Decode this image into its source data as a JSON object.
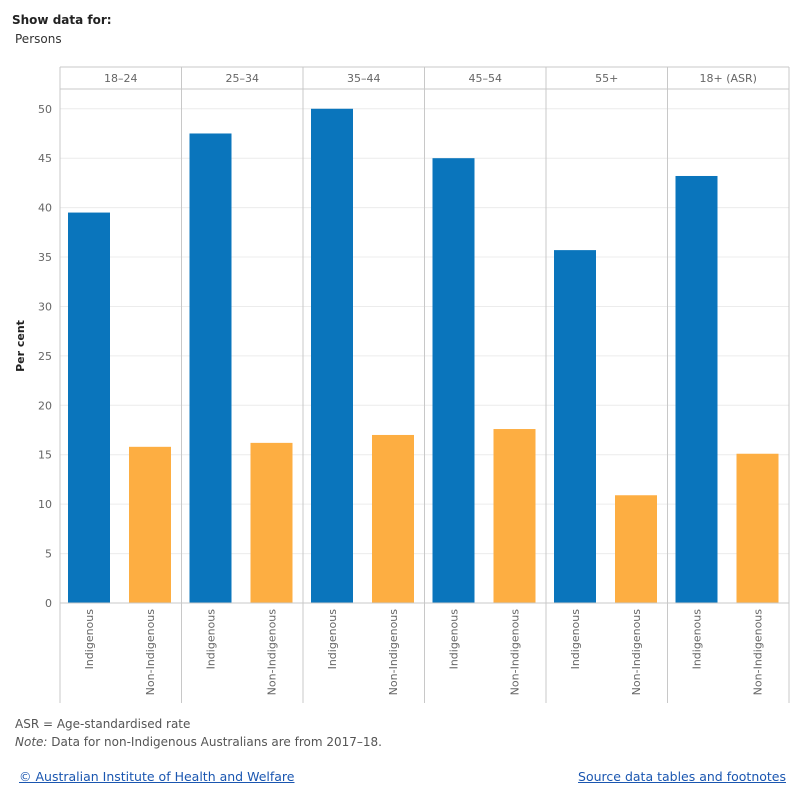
{
  "filter": {
    "label": "Show data for:",
    "value": "Persons"
  },
  "chart_data": {
    "type": "bar",
    "ylabel": "Per cent",
    "ylim": [
      0,
      52
    ],
    "yticks": [
      0,
      5,
      10,
      15,
      20,
      25,
      30,
      35,
      40,
      45,
      50
    ],
    "grid": true,
    "categories": [
      "Indigenous",
      "Non-Indigenous"
    ],
    "panels": [
      {
        "label": "18–24",
        "values": [
          39.5,
          15.8
        ]
      },
      {
        "label": "25–34",
        "values": [
          47.5,
          16.2
        ]
      },
      {
        "label": "35–44",
        "values": [
          50.0,
          17.0
        ]
      },
      {
        "label": "45–54",
        "values": [
          45.0,
          17.6
        ]
      },
      {
        "label": "55+",
        "values": [
          35.7,
          10.9
        ]
      },
      {
        "label": "18+ (ASR)",
        "values": [
          43.2,
          15.1
        ]
      }
    ],
    "colors": {
      "Indigenous": "#0a75bc",
      "Non-Indigenous": "#fdae42"
    }
  },
  "footer": {
    "asr_note": "ASR = Age-standardised rate",
    "note_prefix": "Note:",
    "note_text": " Data for non-Indigenous Australians are from 2017–18.",
    "copyright_link": "© Australian Institute of Health and Welfare",
    "source_link": "Source data tables and footnotes"
  }
}
